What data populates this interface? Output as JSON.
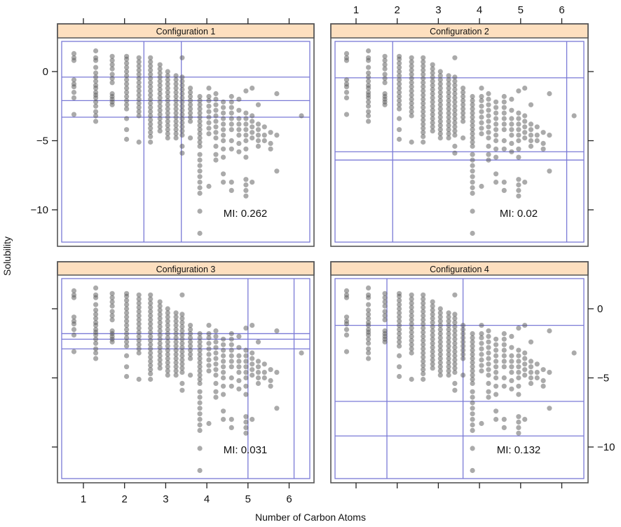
{
  "chart_data": {
    "type": "scatter",
    "title": "",
    "xlabel": "Number of Carbon Atoms",
    "ylabel": "Solubility",
    "xlim": [
      0.5,
      6.5
    ],
    "ylim": [
      -12.3,
      2.1
    ],
    "x_ticks": [
      "1",
      "2",
      "3",
      "4",
      "5",
      "6"
    ],
    "x_tick_values": [
      1,
      2,
      3,
      4,
      5,
      6
    ],
    "y_ticks": [
      "0",
      "−5",
      "−10"
    ],
    "y_tick_values": [
      0,
      -5,
      -10
    ],
    "colors": {
      "strip": "#fddfbf",
      "grid": "#7a7ad6",
      "point": "#555555",
      "frame": "#555555"
    },
    "columns": [
      {
        "x": 0.77,
        "y": [
          1.3,
          1.0,
          0.8,
          -0.6,
          -0.9,
          -1.1,
          -1.5,
          -1.9,
          -3.1
        ]
      },
      {
        "x": 1.3,
        "y": [
          1.5,
          1.0,
          0.8,
          0.3,
          -0.1,
          -0.4,
          -0.7,
          -1.0,
          -1.2,
          -1.5,
          -1.7,
          -1.9,
          -2.2,
          -2.5,
          -2.9,
          -3.2,
          -3.6
        ]
      },
      {
        "x": 1.7,
        "y": [
          1.1,
          0.8,
          0.5,
          0.2,
          -0.2,
          -0.5,
          -0.8,
          -1.6,
          -1.8,
          -2.0,
          -2.2,
          -2.4
        ]
      },
      {
        "x": 2.05,
        "y": [
          1.1,
          0.9,
          0.6,
          0.3,
          0.0,
          -0.3,
          -0.6,
          -0.9,
          -1.2,
          -1.5,
          -1.8,
          -2.1,
          -2.4,
          -2.7,
          -3.4,
          -4.2,
          -4.9
        ]
      },
      {
        "x": 2.35,
        "y": [
          1.0,
          0.7,
          0.4,
          0.1,
          -0.2,
          -0.5,
          -0.8,
          -1.1,
          -1.4,
          -1.7,
          -2.0,
          -2.3,
          -2.6,
          -2.9,
          -3.2,
          -5.1
        ]
      },
      {
        "x": 2.63,
        "y": [
          1.0,
          0.7,
          0.4,
          0.1,
          -0.2,
          -0.5,
          -0.8,
          -1.1,
          -1.4,
          -1.7,
          -2.0,
          -2.3,
          -2.6,
          -2.9,
          -3.2,
          -3.5,
          -3.8,
          -4.1,
          -4.4,
          -4.7,
          -5.1
        ]
      },
      {
        "x": 2.86,
        "y": [
          0.5,
          0.2,
          -0.1,
          -0.4,
          -0.7,
          -1.0,
          -1.3,
          -1.6,
          -1.9,
          -2.2,
          -2.5,
          -2.8,
          -3.1,
          -3.4,
          -3.7,
          -4.0,
          -4.3
        ]
      },
      {
        "x": 3.05,
        "y": [
          0.0,
          -0.3,
          -0.6,
          -0.9,
          -1.2,
          -1.5,
          -1.8,
          -2.1,
          -2.4,
          -2.7,
          -3.0,
          -3.3,
          -3.6,
          -3.9,
          -4.2,
          -4.5,
          -4.8
        ]
      },
      {
        "x": 3.25,
        "y": [
          -0.3,
          -0.6,
          -0.9,
          -1.2,
          -1.5,
          -1.8,
          -2.1,
          -2.4,
          -2.7,
          -3.0,
          -3.3,
          -3.6,
          -3.9,
          -4.2,
          -4.5,
          -4.8
        ]
      },
      {
        "x": 3.4,
        "y": [
          1.0,
          -0.4,
          -0.7,
          -1.0,
          -1.3,
          -1.6,
          -1.9,
          -2.2,
          -2.5,
          -2.8,
          -3.1,
          -3.4,
          -3.7,
          -4.0,
          -4.3,
          -4.6,
          -5.4,
          -5.9
        ]
      },
      {
        "x": 3.6,
        "y": [
          -1.2,
          -1.5,
          -1.8,
          -2.1,
          -2.4,
          -2.7,
          -3.0,
          -3.3,
          -3.6,
          -4.8
        ]
      },
      {
        "x": 3.83,
        "y": [
          -1.8,
          -2.1,
          -2.4,
          -2.7,
          -3.0,
          -3.3,
          -3.6,
          -3.9,
          -4.2,
          -4.5,
          -4.8,
          -5.1,
          -5.4,
          -6.0,
          -6.4,
          -6.8,
          -7.2,
          -7.6,
          -8.0,
          -8.4,
          -8.8,
          -10.1,
          -11.7
        ]
      },
      {
        "x": 4.05,
        "y": [
          -1.2,
          -1.8,
          -2.1,
          -2.5,
          -2.9,
          -3.3,
          -3.7,
          -4.1,
          -4.5,
          -8.3
        ]
      },
      {
        "x": 4.22,
        "y": [
          -1.6,
          -2.0,
          -2.4,
          -2.8,
          -3.2,
          -3.6,
          -4.0,
          -4.4,
          -4.8,
          -5.4,
          -6.0,
          -6.4
        ]
      },
      {
        "x": 4.4,
        "y": [
          -2.2,
          -2.6,
          -3.0,
          -3.4,
          -3.8,
          -4.2,
          -4.6,
          -5.0,
          -5.6,
          -6.2,
          -7.4,
          -8.0
        ]
      },
      {
        "x": 4.6,
        "y": [
          -1.8,
          -2.2,
          -2.6,
          -3.0,
          -3.4,
          -3.8,
          -4.2,
          -5.0,
          -5.6,
          -8.0,
          -8.6
        ]
      },
      {
        "x": 4.78,
        "y": [
          -2.0,
          -2.8,
          -3.4,
          -3.8,
          -4.2,
          -4.6,
          -5.2,
          -5.8
        ]
      },
      {
        "x": 4.95,
        "y": [
          -1.4,
          -3.0,
          -3.4,
          -3.8,
          -4.2,
          -4.6,
          -5.0,
          -5.6,
          -6.2,
          -7.8,
          -8.2,
          -8.6,
          -9.0
        ]
      },
      {
        "x": 5.1,
        "y": [
          -1.2,
          -3.2,
          -3.6,
          -4.0,
          -4.4,
          -4.8,
          -8.0
        ]
      },
      {
        "x": 5.25,
        "y": [
          -2.4,
          -3.8,
          -4.2,
          -4.6,
          -5.0,
          -5.4
        ]
      },
      {
        "x": 5.4,
        "y": [
          -4.0,
          -4.6,
          -5.0
        ]
      },
      {
        "x": 5.55,
        "y": [
          -4.4,
          -5.2,
          -5.6
        ]
      },
      {
        "x": 5.7,
        "y": [
          -1.6,
          -4.6,
          -7.2
        ]
      },
      {
        "x": 6.3,
        "y": [
          -3.2
        ]
      }
    ],
    "panels": [
      {
        "title": "Configuration 1",
        "mi": "MI: 0.262",
        "v_lines": [
          2.47,
          3.38
        ],
        "h_lines": [
          -0.4,
          -2.1,
          -3.3
        ]
      },
      {
        "title": "Configuration 2",
        "mi": "MI: 0.02",
        "v_lines": [
          1.89,
          6.12
        ],
        "h_lines": [
          -0.45,
          -5.8,
          -6.4
        ]
      },
      {
        "title": "Configuration 3",
        "mi": "MI: 0.031",
        "v_lines": [
          5.0,
          6.12
        ],
        "h_lines": [
          -1.8,
          -2.2,
          -2.9
        ]
      },
      {
        "title": "Configuration 4",
        "mi": "MI: 0.132",
        "v_lines": [
          1.75,
          3.6
        ],
        "h_lines": [
          -1.2,
          -6.7,
          -9.2
        ]
      }
    ]
  }
}
